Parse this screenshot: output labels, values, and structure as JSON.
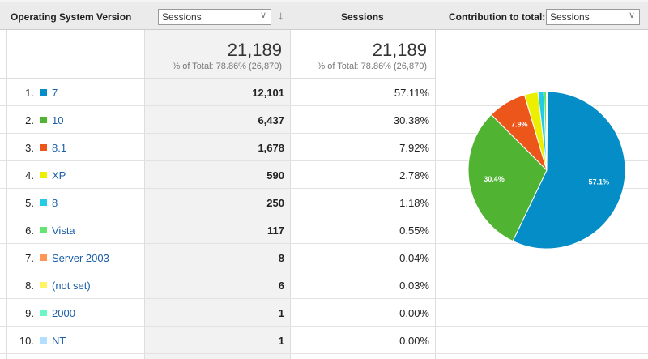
{
  "header": {
    "dimension": "Operating System Version",
    "metric_select": "Sessions",
    "sort_icon": "arrow-down-icon",
    "metric_col": "Sessions",
    "contribution_label": "Contribution to total:",
    "contribution_select": "Sessions"
  },
  "totals": [
    {
      "value": "21,189",
      "sub": "% of Total: 78.86% (26,870)"
    },
    {
      "value": "21,189",
      "sub": "% of Total: 78.86% (26,870)"
    }
  ],
  "rows": [
    {
      "idx": "1.",
      "label": "7",
      "sessions": "12,101",
      "pct": "57.11%",
      "color": "#058dc7",
      "value": 57.11
    },
    {
      "idx": "2.",
      "label": "10",
      "sessions": "6,437",
      "pct": "30.38%",
      "color": "#50b432",
      "value": 30.38
    },
    {
      "idx": "3.",
      "label": "8.1",
      "sessions": "1,678",
      "pct": "7.92%",
      "color": "#ed561b",
      "value": 7.92
    },
    {
      "idx": "4.",
      "label": "XP",
      "sessions": "590",
      "pct": "2.78%",
      "color": "#edef00",
      "value": 2.78
    },
    {
      "idx": "5.",
      "label": "8",
      "sessions": "250",
      "pct": "1.18%",
      "color": "#24cbe5",
      "value": 1.18
    },
    {
      "idx": "6.",
      "label": "Vista",
      "sessions": "117",
      "pct": "0.55%",
      "color": "#64e572",
      "value": 0.55
    },
    {
      "idx": "7.",
      "label": "Server 2003",
      "sessions": "8",
      "pct": "0.04%",
      "color": "#ff9655",
      "value": 0.04
    },
    {
      "idx": "8.",
      "label": "(not set)",
      "sessions": "6",
      "pct": "0.03%",
      "color": "#fff263",
      "value": 0.03
    },
    {
      "idx": "9.",
      "label": "2000",
      "sessions": "1",
      "pct": "0.00%",
      "color": "#6af9c4",
      "value": 0.0
    },
    {
      "idx": "10.",
      "label": "NT",
      "sessions": "1",
      "pct": "0.00%",
      "color": "#b2deff",
      "value": 0.0
    }
  ],
  "pie_labels": [
    "57.1%",
    "30.4%",
    "7.9%"
  ]
}
